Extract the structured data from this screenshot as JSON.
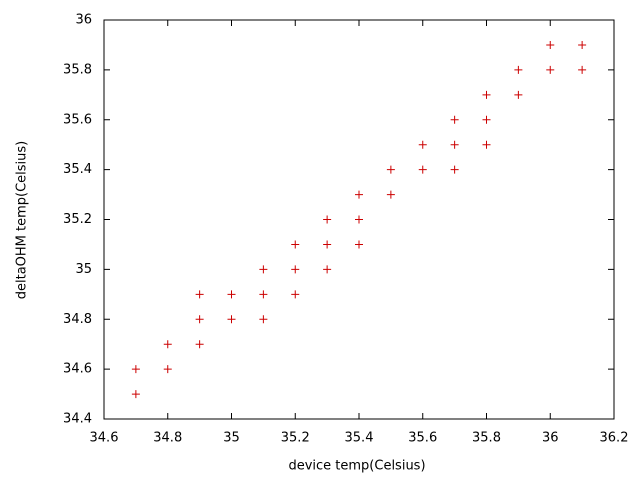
{
  "chart_data": {
    "type": "scatter",
    "xlabel": "device temp(Celsius)",
    "ylabel": "deltaOHM temp(Celsius)",
    "x": [
      34.7,
      34.7,
      34.8,
      34.8,
      34.9,
      34.9,
      34.9,
      35.0,
      35.0,
      35.1,
      35.1,
      35.1,
      35.2,
      35.2,
      35.2,
      35.3,
      35.3,
      35.3,
      35.4,
      35.4,
      35.4,
      35.5,
      35.5,
      35.6,
      35.6,
      35.7,
      35.7,
      35.7,
      35.8,
      35.8,
      35.8,
      35.9,
      35.9,
      36.0,
      36.0,
      36.1,
      36.1
    ],
    "values": [
      34.6,
      34.5,
      34.7,
      34.6,
      34.9,
      34.8,
      34.7,
      34.9,
      34.8,
      35.0,
      34.9,
      34.8,
      35.1,
      35.0,
      34.9,
      35.2,
      35.1,
      35.0,
      35.3,
      35.2,
      35.1,
      35.4,
      35.3,
      35.5,
      35.4,
      35.6,
      35.5,
      35.4,
      35.7,
      35.6,
      35.5,
      35.8,
      35.7,
      35.9,
      35.8,
      35.9,
      35.8
    ],
    "color": "#cc0000",
    "xlim": [
      34.6,
      36.2
    ],
    "xticks": [
      34.6,
      34.8,
      35,
      35.2,
      35.4,
      35.6,
      35.8,
      36,
      36.2
    ],
    "ylim": [
      34.4,
      36
    ],
    "yticks": [
      34.4,
      34.6,
      34.8,
      35,
      35.2,
      35.4,
      35.6,
      35.8,
      36
    ]
  }
}
